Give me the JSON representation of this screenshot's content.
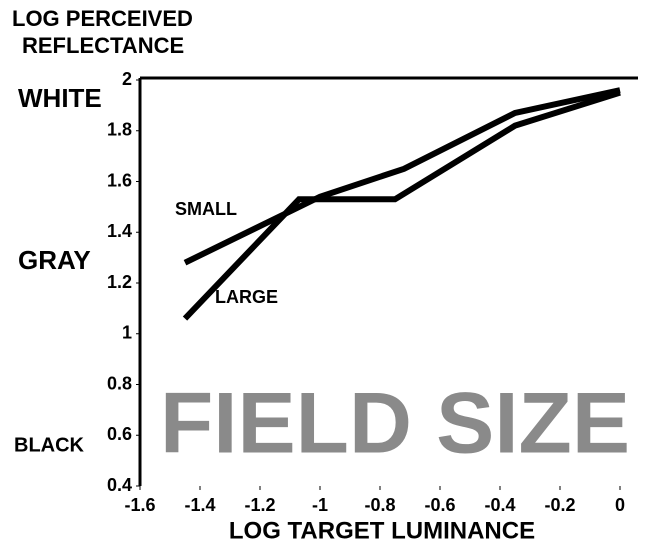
{
  "chart_data": {
    "type": "line",
    "ylabel": [
      "LOG PERCEIVED",
      "REFLECTANCE"
    ],
    "xlabel": "LOG TARGET LUMINANCE",
    "annotations": [
      "WHITE",
      "GRAY",
      "BLACK",
      "FIELD SIZE"
    ],
    "series": [
      {
        "name": "SMALL",
        "color": "#000000",
        "x": [
          -1.45,
          -1.0,
          -0.72,
          -0.35,
          0
        ],
        "values": [
          1.28,
          1.54,
          1.65,
          1.87,
          1.96
        ]
      },
      {
        "name": "LARGE",
        "color": "#000000",
        "x": [
          -1.45,
          -1.07,
          -0.75,
          -0.35,
          0
        ],
        "values": [
          1.06,
          1.53,
          1.53,
          1.82,
          1.95
        ]
      }
    ],
    "xlim": [
      -1.6,
      0
    ],
    "xticks": [
      -1.6,
      -1.4,
      -1.2,
      -1,
      -0.8,
      -0.6,
      -0.4,
      -0.2,
      0
    ],
    "ylim": [
      0.4,
      2
    ],
    "yticks": [
      0.4,
      0.6,
      0.8,
      1,
      1.2,
      1.4,
      1.6,
      1.8,
      2
    ]
  }
}
